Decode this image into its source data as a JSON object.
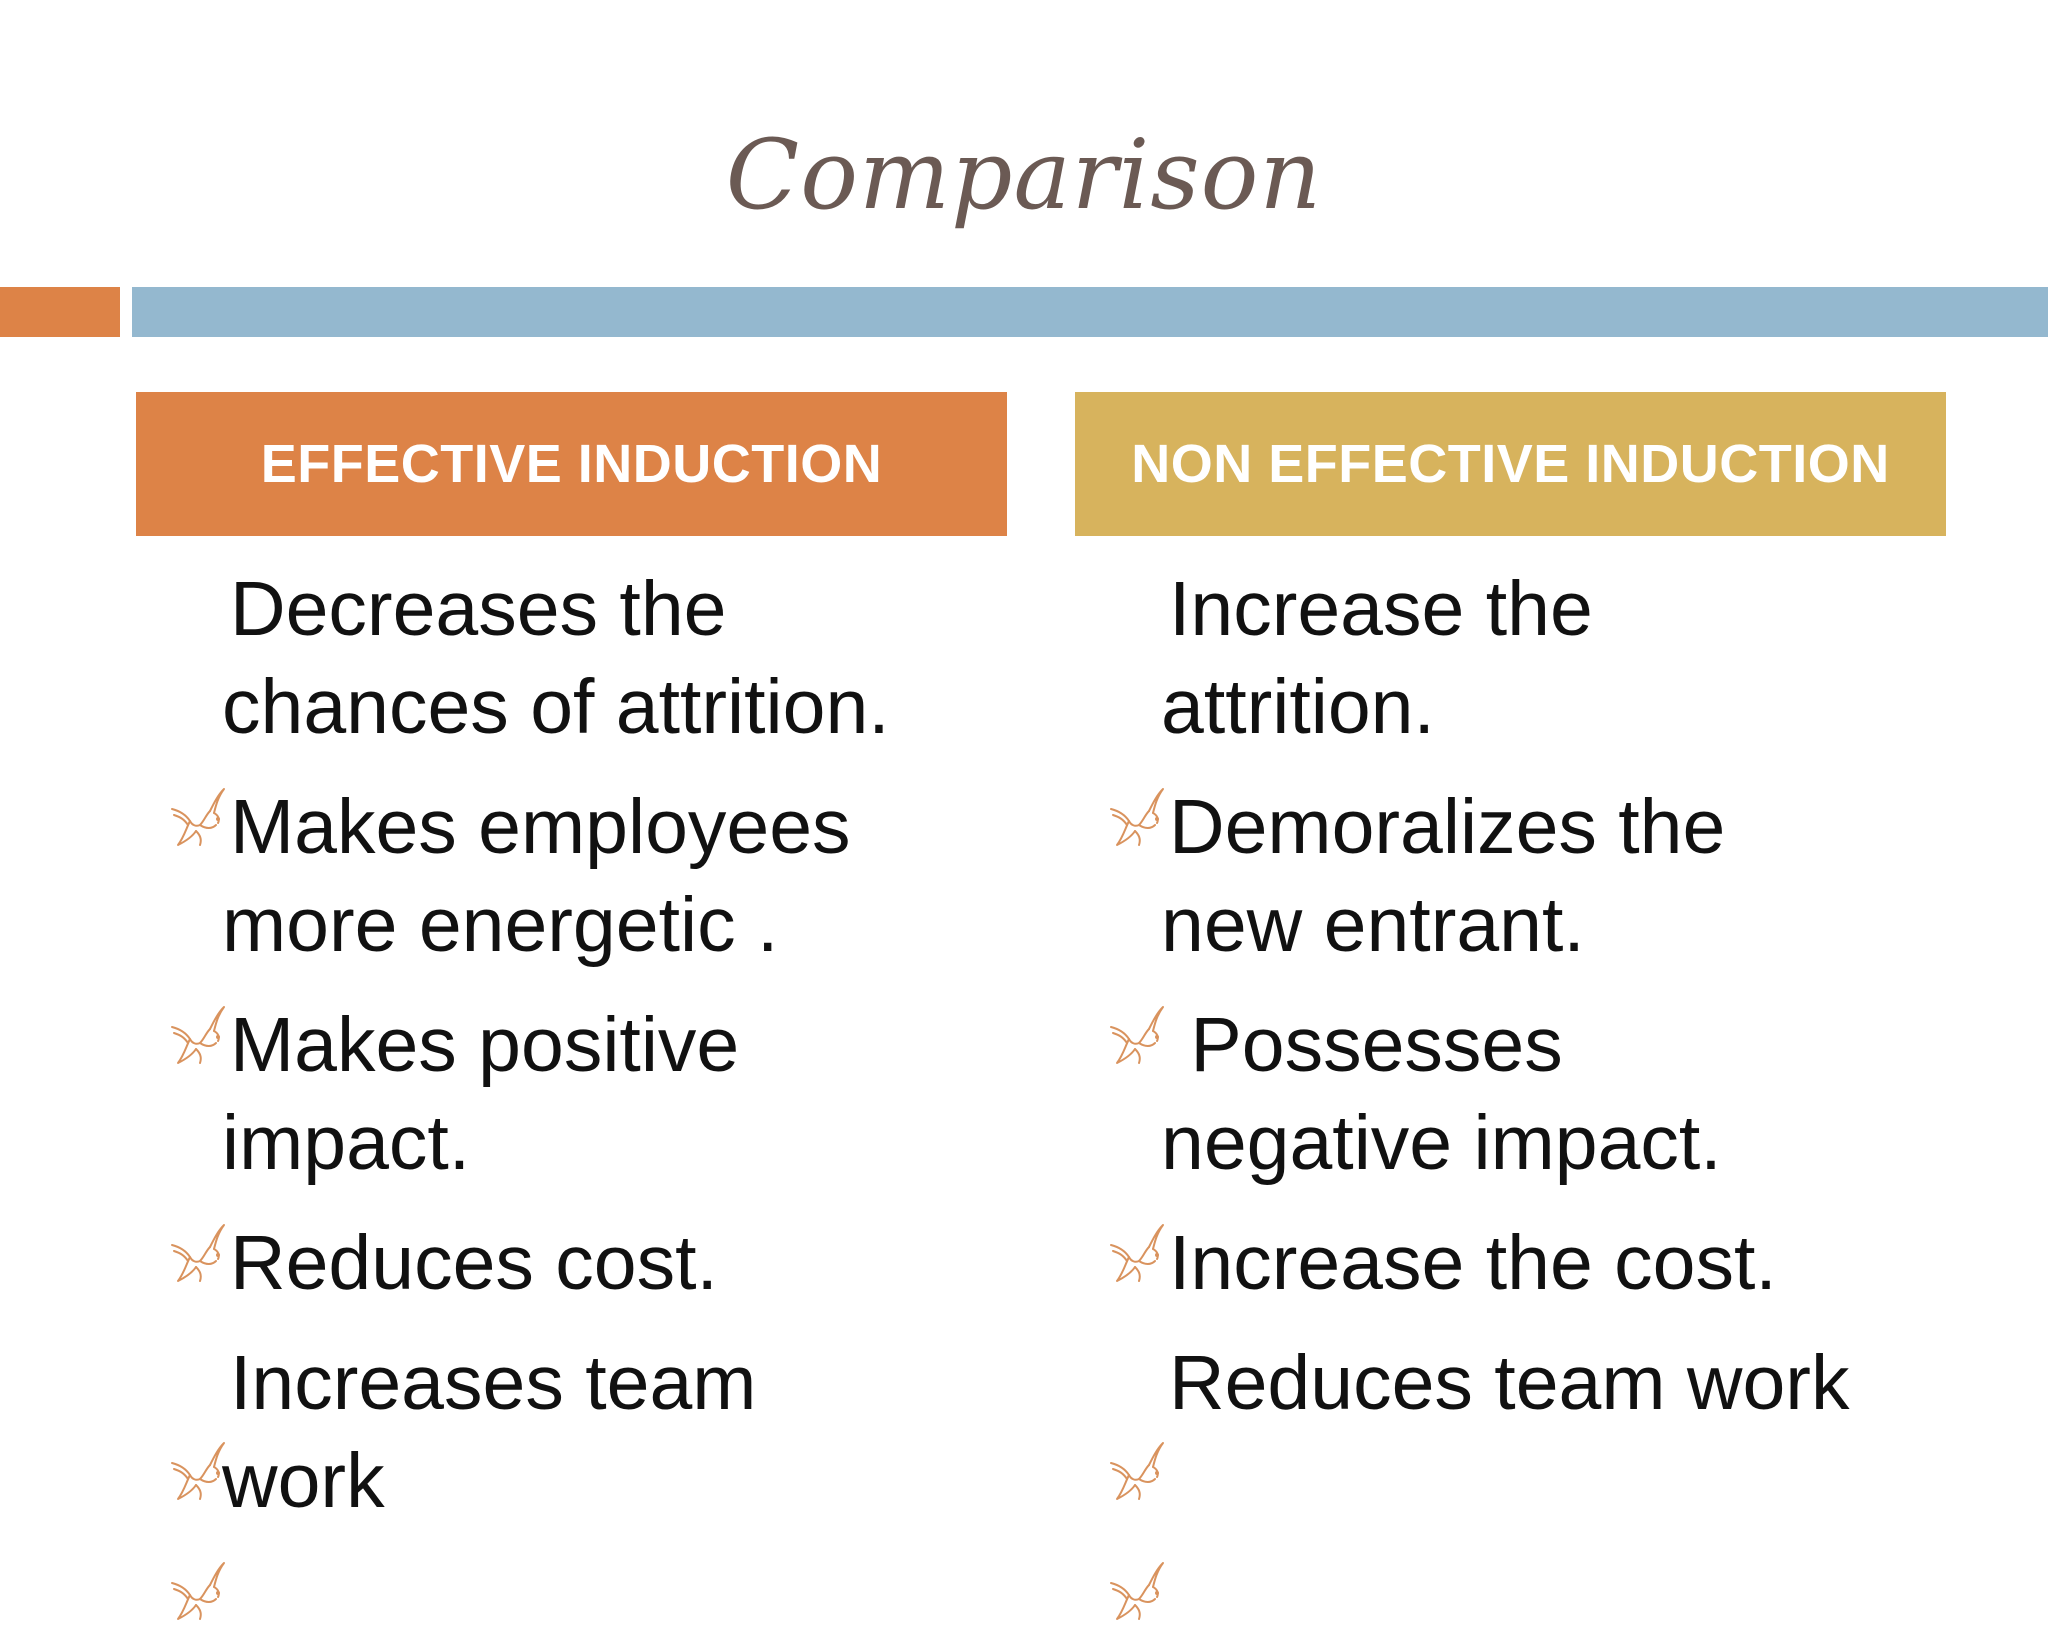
{
  "slide": {
    "title": "Comparison"
  },
  "columns": [
    {
      "header": "EFFECTIVE INDUCTION",
      "items": [
        {
          "line1": "Decreases the",
          "rest": "chances of attrition."
        },
        {
          "line1": "Makes employees",
          "rest": "more energetic ."
        },
        {
          "line1": "Makes positive",
          "rest": "impact."
        },
        {
          "line1": "Reduces cost.",
          "rest": ""
        },
        {
          "line1": "Increases team",
          "rest": "work"
        }
      ]
    },
    {
      "header": "NON EFFECTIVE INDUCTION",
      "items": [
        {
          "line1": "Increase the",
          "rest": "attrition."
        },
        {
          "line1": "Demoralizes the",
          "rest": "new entrant."
        },
        {
          "line1": " Possesses",
          "rest": "negative impact."
        },
        {
          "line1": "Increase the cost.",
          "rest": ""
        },
        {
          "line1": "Reduces team work",
          "rest": ""
        }
      ]
    }
  ],
  "colors": {
    "title": "#6b5a54",
    "accent_orange": "#dd8347",
    "accent_blue": "#94b8cf",
    "accent_gold": "#d7b35d",
    "bullet_stroke": "#d9935e"
  },
  "icons": {
    "bullet": "dove-bullet-icon"
  }
}
